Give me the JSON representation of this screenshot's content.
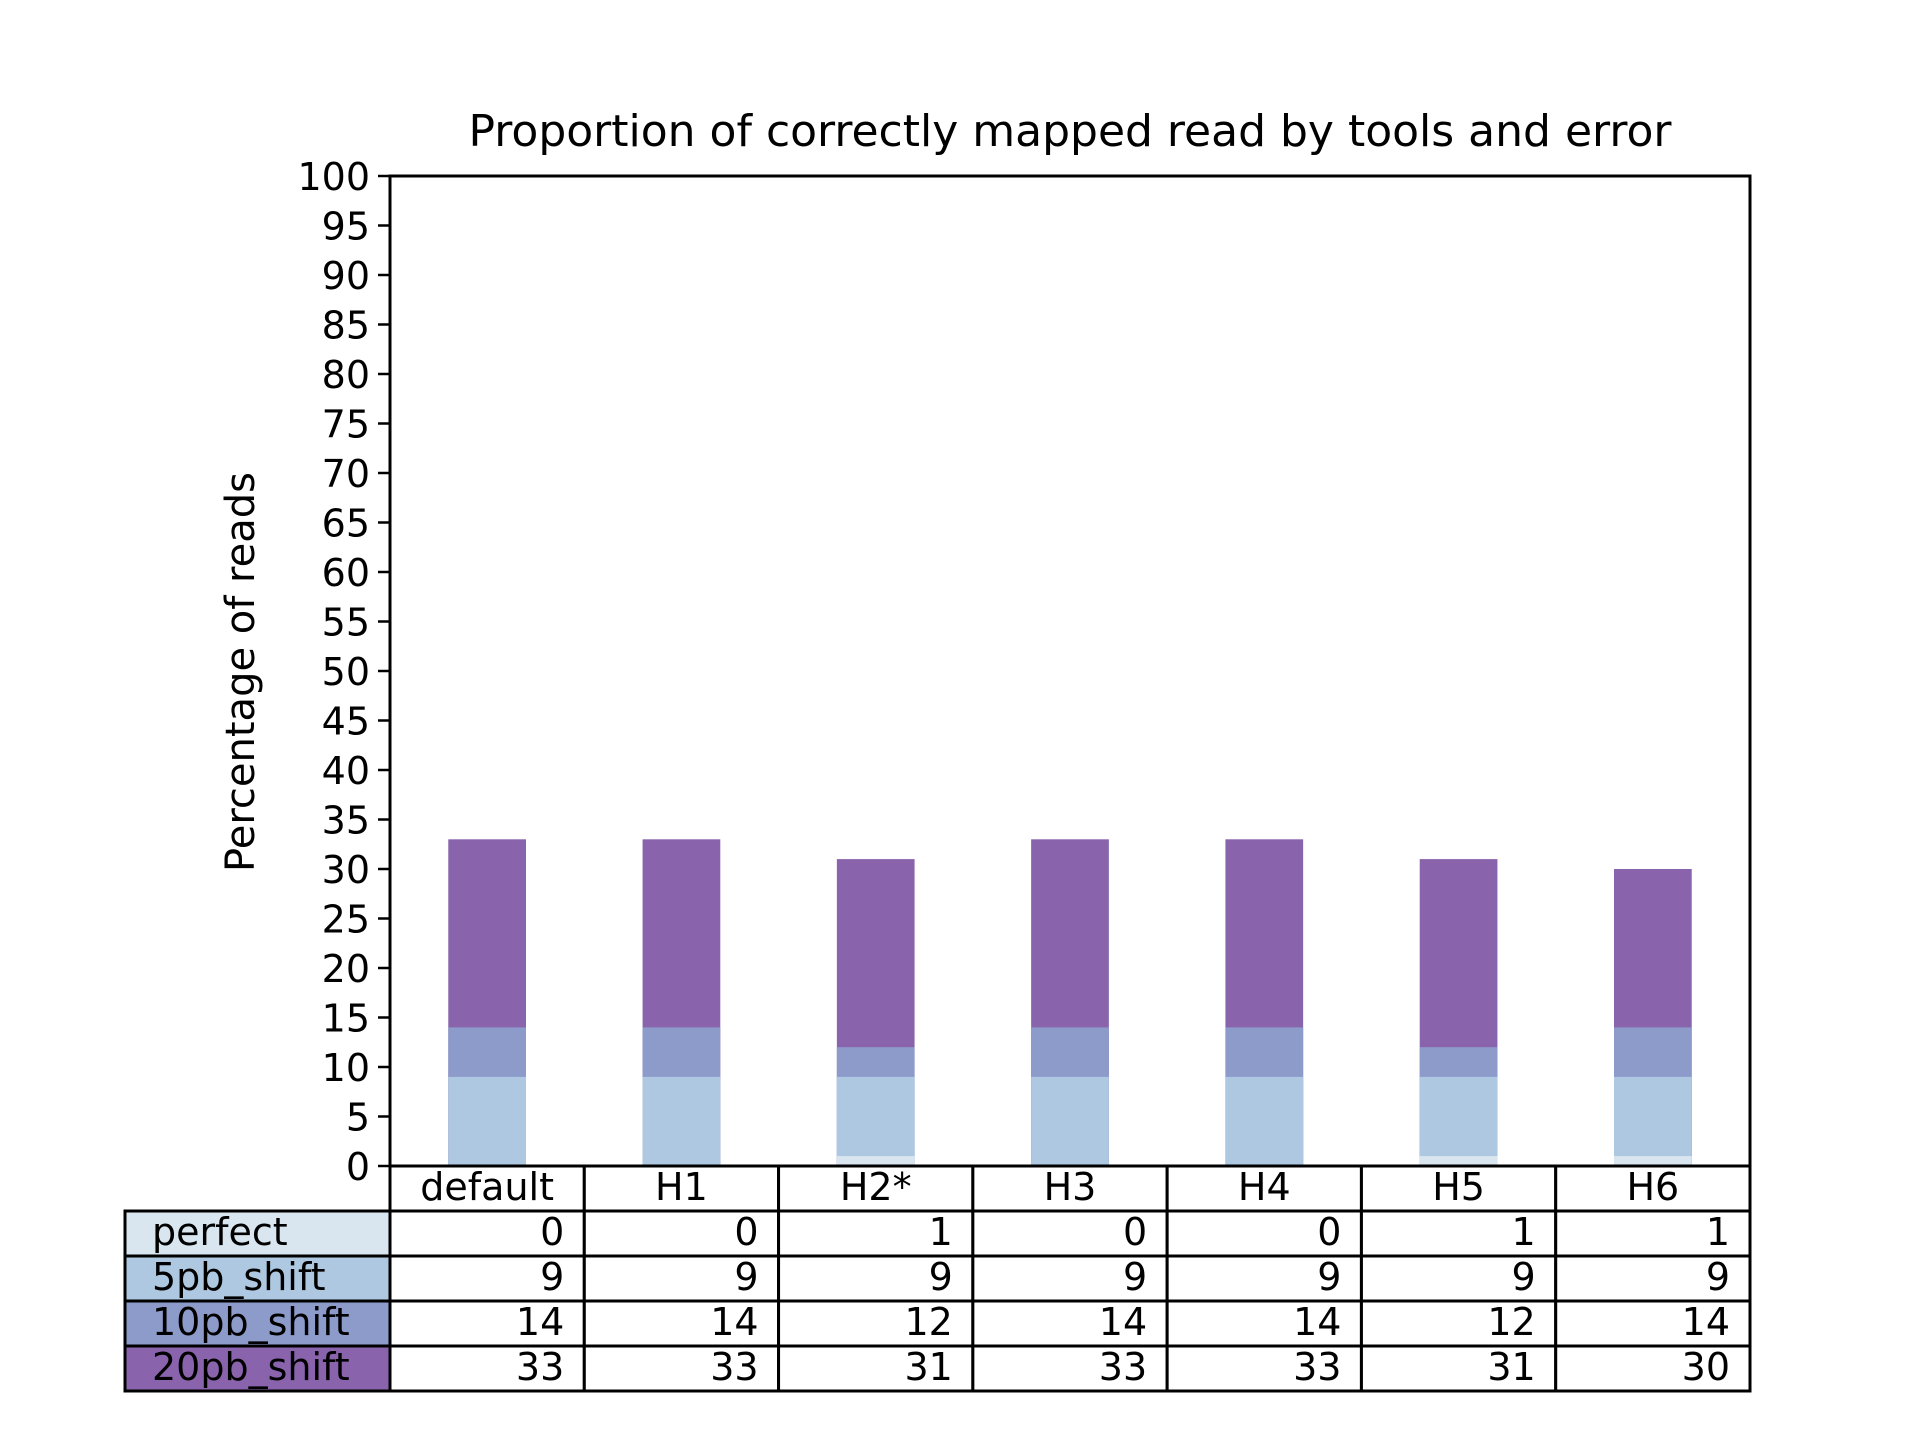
{
  "chart_data": {
    "type": "bar",
    "stacked": true,
    "title": "Proportion of correctly mapped read by tools and error",
    "xlabel": "",
    "ylabel": "Percentage of reads",
    "ylim": [
      0,
      100
    ],
    "yticks": [
      0,
      5,
      10,
      15,
      20,
      25,
      30,
      35,
      40,
      45,
      50,
      55,
      60,
      65,
      70,
      75,
      80,
      85,
      90,
      95,
      100
    ],
    "categories": [
      "default",
      "H1",
      "H2*",
      "H3",
      "H4",
      "H5",
      "H6"
    ],
    "series": [
      {
        "name": "perfect",
        "color": "#d9e6ef",
        "values": [
          0,
          0,
          1,
          0,
          0,
          1,
          1
        ]
      },
      {
        "name": "5pb_shift",
        "color": "#adc8e0",
        "values": [
          9,
          9,
          9,
          9,
          9,
          9,
          9
        ]
      },
      {
        "name": "10pb_shift",
        "color": "#8d9bca",
        "values": [
          14,
          14,
          12,
          14,
          14,
          12,
          14
        ]
      },
      {
        "name": "20pb_shift",
        "color": "#8a63ad",
        "values": [
          33,
          33,
          31,
          33,
          33,
          31,
          30
        ]
      }
    ],
    "grid": false,
    "legend": "table-below"
  }
}
